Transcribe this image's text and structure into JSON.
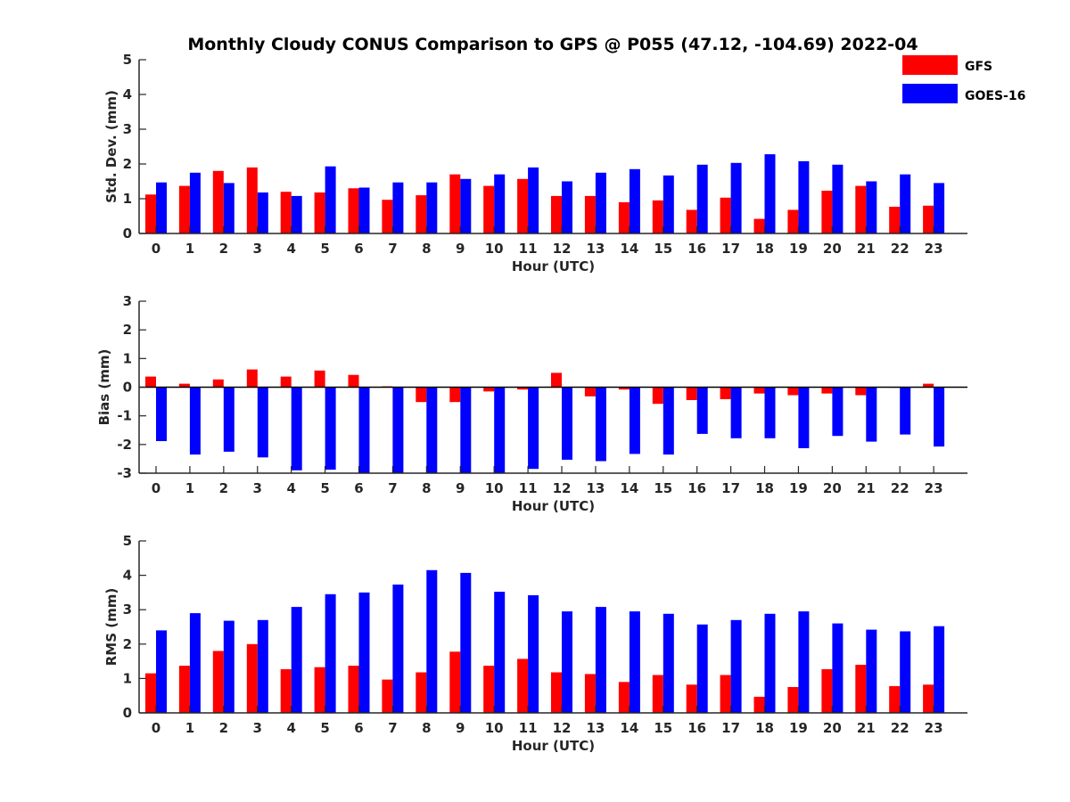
{
  "title": "Monthly Cloudy CONUS Comparison to GPS @ P055 (47.12, -104.69) 2022-04",
  "legend": [
    {
      "name": "GFS",
      "color": "#ff0000"
    },
    {
      "name": "GOES-16",
      "color": "#0000ff"
    }
  ],
  "chart_data": [
    {
      "type": "bar",
      "xlabel": "Hour (UTC)",
      "ylabel": "Std. Dev. (mm)",
      "ylim": [
        0,
        5
      ],
      "yticks": [
        0,
        1,
        2,
        3,
        4,
        5
      ],
      "categories": [
        "0",
        "1",
        "2",
        "3",
        "4",
        "5",
        "6",
        "7",
        "8",
        "9",
        "10",
        "11",
        "12",
        "13",
        "14",
        "15",
        "16",
        "17",
        "18",
        "19",
        "20",
        "21",
        "22",
        "23"
      ],
      "series": [
        {
          "name": "GFS",
          "color": "#ff0000",
          "values": [
            1.12,
            1.37,
            1.8,
            1.9,
            1.2,
            1.18,
            1.3,
            0.97,
            1.1,
            1.7,
            1.37,
            1.57,
            1.08,
            1.08,
            0.9,
            0.95,
            0.68,
            1.03,
            0.42,
            0.68,
            1.23,
            1.37,
            0.77,
            0.8
          ]
        },
        {
          "name": "GOES-16",
          "color": "#0000ff",
          "values": [
            1.47,
            1.75,
            1.45,
            1.18,
            1.08,
            1.93,
            1.32,
            1.47,
            1.47,
            1.57,
            1.7,
            1.9,
            1.5,
            1.75,
            1.85,
            1.67,
            1.98,
            2.03,
            2.28,
            2.08,
            1.98,
            1.5,
            1.7,
            1.45
          ]
        }
      ]
    },
    {
      "type": "bar",
      "xlabel": "Hour (UTC)",
      "ylabel": "Bias (mm)",
      "ylim": [
        -3,
        3
      ],
      "yticks": [
        -3,
        -2,
        -1,
        0,
        1,
        2,
        3
      ],
      "categories": [
        "0",
        "1",
        "2",
        "3",
        "4",
        "5",
        "6",
        "7",
        "8",
        "9",
        "10",
        "11",
        "12",
        "13",
        "14",
        "15",
        "16",
        "17",
        "18",
        "19",
        "20",
        "21",
        "22",
        "23"
      ],
      "series": [
        {
          "name": "GFS",
          "color": "#ff0000",
          "values": [
            0.37,
            0.12,
            0.27,
            0.62,
            0.37,
            0.58,
            0.43,
            0.03,
            -0.52,
            -0.52,
            -0.15,
            -0.08,
            0.5,
            -0.32,
            -0.08,
            -0.58,
            -0.45,
            -0.42,
            -0.22,
            -0.28,
            -0.22,
            -0.28,
            0.0,
            0.12
          ]
        },
        {
          "name": "GOES-16",
          "color": "#0000ff",
          "values": [
            -1.88,
            -2.35,
            -2.25,
            -2.45,
            -2.9,
            -2.88,
            -3.0,
            -3.0,
            -3.0,
            -3.0,
            -3.0,
            -2.85,
            -2.53,
            -2.58,
            -2.33,
            -2.35,
            -1.63,
            -1.78,
            -1.78,
            -2.13,
            -1.7,
            -1.9,
            -1.65,
            -2.07
          ]
        }
      ]
    },
    {
      "type": "bar",
      "xlabel": "Hour (UTC)",
      "ylabel": "RMS (mm)",
      "ylim": [
        0,
        5
      ],
      "yticks": [
        0,
        1,
        2,
        3,
        4,
        5
      ],
      "categories": [
        "0",
        "1",
        "2",
        "3",
        "4",
        "5",
        "6",
        "7",
        "8",
        "9",
        "10",
        "11",
        "12",
        "13",
        "14",
        "15",
        "16",
        "17",
        "18",
        "19",
        "20",
        "21",
        "22",
        "23"
      ],
      "series": [
        {
          "name": "GFS",
          "color": "#ff0000",
          "values": [
            1.15,
            1.37,
            1.8,
            2.0,
            1.27,
            1.33,
            1.37,
            0.97,
            1.18,
            1.78,
            1.37,
            1.57,
            1.18,
            1.13,
            0.9,
            1.1,
            0.82,
            1.1,
            0.47,
            0.75,
            1.27,
            1.4,
            0.78,
            0.82
          ]
        },
        {
          "name": "GOES-16",
          "color": "#0000ff",
          "values": [
            2.4,
            2.9,
            2.68,
            2.7,
            3.08,
            3.45,
            3.5,
            3.73,
            4.15,
            4.07,
            3.52,
            3.42,
            2.95,
            3.08,
            2.95,
            2.88,
            2.57,
            2.7,
            2.88,
            2.95,
            2.6,
            2.42,
            2.37,
            2.52
          ]
        }
      ]
    }
  ]
}
